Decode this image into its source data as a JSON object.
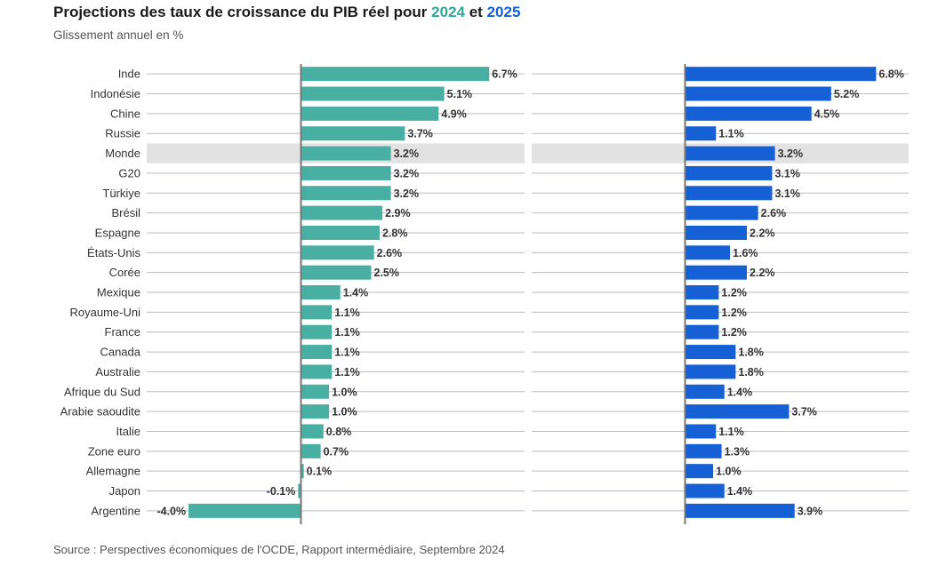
{
  "header": {
    "title_prefix": "Projections des taux de croissance du PIB réel pour",
    "year1": "2024",
    "title_and": "et",
    "year2": "2025",
    "subtitle": "Glissement annuel en %"
  },
  "footer": {
    "source": "Source : Perspectives économiques de l'OCDE, Rapport intermédiaire, Septembre 2024"
  },
  "colors": {
    "series_2024": "#4aafa3",
    "series_2025": "#1560d4",
    "highlight_band": "#e2e2e2",
    "axis": "#777777",
    "gridline": "#b9bcc4"
  },
  "chart_data": {
    "type": "bar",
    "orientation": "horizontal",
    "layout": "two panels side by side",
    "unit": "%",
    "highlighted_category": "Monde",
    "categories": [
      "Inde",
      "Indonésie",
      "Chine",
      "Russie",
      "Monde",
      "G20",
      "Türkiye",
      "Brésil",
      "Espagne",
      "États-Unis",
      "Corée",
      "Mexique",
      "Royaume-Uni",
      "France",
      "Canada",
      "Australie",
      "Afrique du Sud",
      "Arabie saoudite",
      "Italie",
      "Zone euro",
      "Allemagne",
      "Japon",
      "Argentine"
    ],
    "series": [
      {
        "name": "2024",
        "values": [
          6.7,
          5.1,
          4.9,
          3.7,
          3.2,
          3.2,
          3.2,
          2.9,
          2.8,
          2.6,
          2.5,
          1.4,
          1.1,
          1.1,
          1.1,
          1.1,
          1.0,
          1.0,
          0.8,
          0.7,
          0.1,
          -0.1,
          -4.0
        ]
      },
      {
        "name": "2025",
        "values": [
          6.8,
          5.2,
          4.5,
          1.1,
          3.2,
          3.1,
          3.1,
          2.6,
          2.2,
          1.6,
          2.2,
          1.2,
          1.2,
          1.2,
          1.8,
          1.8,
          1.4,
          3.7,
          1.1,
          1.3,
          1.0,
          1.4,
          3.9
        ]
      }
    ],
    "data_labels": {
      "2024": [
        "6.7%",
        "5.1%",
        "4.9%",
        "3.7%",
        "3.2%",
        "3.2%",
        "3.2%",
        "2.9%",
        "2.8%",
        "2.6%",
        "2.5%",
        "1.4%",
        "1.1%",
        "1.1%",
        "1.1%",
        "1.1%",
        "1.0%",
        "1.0%",
        "0.8%",
        "0.7%",
        "0.1%",
        "-0.1%",
        "-4.0%"
      ],
      "2025": [
        "6.8%",
        "5.2%",
        "4.5%",
        "1.1%",
        "3.2%",
        "3.1%",
        "3.1%",
        "2.6%",
        "2.2%",
        "1.6%",
        "2.2%",
        "1.2%",
        "1.2%",
        "1.2%",
        "1.8%",
        "1.8%",
        "1.4%",
        "3.7%",
        "1.1%",
        "1.3%",
        "1.0%",
        "1.4%",
        "3.9%"
      ]
    },
    "grid": true
  }
}
